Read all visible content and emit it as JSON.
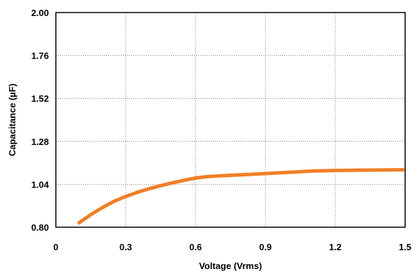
{
  "chart_data": {
    "type": "line",
    "title": "",
    "xlabel": "Voltage  (Vrms)",
    "ylabel": "Capacitance (µF)",
    "xlim": [
      0,
      1.5
    ],
    "ylim": [
      0.8,
      2.0
    ],
    "x_ticks": [
      "0",
      "0.3",
      "0.6",
      "0.9",
      "1.2",
      "1.5"
    ],
    "y_ticks": [
      "0.80",
      "1.04",
      "1.28",
      "1.52",
      "1.76",
      "2.00"
    ],
    "grid": true,
    "grid_style": "dotted",
    "line_color": "#f07f27",
    "series": [
      {
        "x": [
          0.1,
          0.15,
          0.2,
          0.25,
          0.3,
          0.35,
          0.4,
          0.45,
          0.5,
          0.55,
          0.6,
          0.65,
          0.7,
          0.8,
          0.9,
          1.0,
          1.1,
          1.2,
          1.3,
          1.4,
          1.49
        ],
        "y": [
          0.825,
          0.87,
          0.91,
          0.945,
          0.972,
          0.995,
          1.015,
          1.032,
          1.048,
          1.062,
          1.075,
          1.083,
          1.087,
          1.093,
          1.1,
          1.107,
          1.114,
          1.117,
          1.119,
          1.12,
          1.121
        ]
      }
    ]
  }
}
